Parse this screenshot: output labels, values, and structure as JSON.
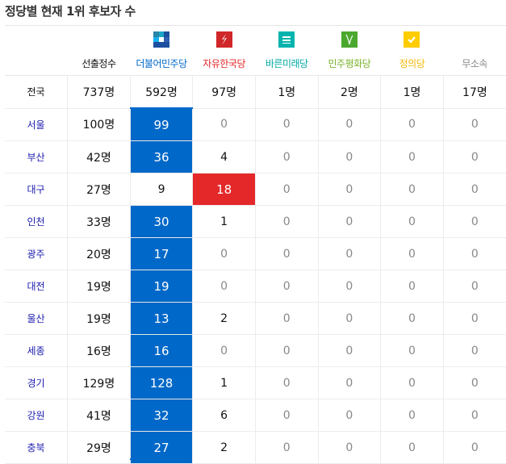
{
  "title": "정당별 현재 1위 후보자 수",
  "columns": [
    {
      "label": "선출정수",
      "color": "#111111",
      "icon": ""
    },
    {
      "label": "더불어민주당",
      "color": "#0068c8",
      "icon": "democratic-party-logo"
    },
    {
      "label": "자유한국당",
      "color": "#e4282a",
      "icon": "liberty-korea-party-logo"
    },
    {
      "label": "바른미래당",
      "color": "#00a9a4",
      "icon": "bareunmirae-party-logo"
    },
    {
      "label": "민주평화당",
      "color": "#7cb32c",
      "icon": "peace-democratic-party-logo"
    },
    {
      "label": "정의당",
      "color": "#f5b800",
      "icon": "justice-party-logo"
    },
    {
      "label": "무소속",
      "color": "#888888",
      "icon": ""
    }
  ],
  "total": {
    "region": "전국",
    "values": [
      "737명",
      "592명",
      "97명",
      "1명",
      "2명",
      "1명",
      "17명"
    ]
  },
  "rows": [
    {
      "region": "서울",
      "seats": "100명",
      "values": [
        "99",
        "0",
        "0",
        "0",
        "0",
        "0"
      ],
      "winner": 0
    },
    {
      "region": "부산",
      "seats": "42명",
      "values": [
        "36",
        "4",
        "0",
        "0",
        "0",
        "0"
      ],
      "winner": 0
    },
    {
      "region": "대구",
      "seats": "27명",
      "values": [
        "9",
        "18",
        "0",
        "0",
        "0",
        "0"
      ],
      "winner": 1
    },
    {
      "region": "인천",
      "seats": "33명",
      "values": [
        "30",
        "1",
        "0",
        "0",
        "0",
        "0"
      ],
      "winner": 0
    },
    {
      "region": "광주",
      "seats": "20명",
      "values": [
        "17",
        "0",
        "0",
        "0",
        "0",
        "0"
      ],
      "winner": 0
    },
    {
      "region": "대전",
      "seats": "19명",
      "values": [
        "19",
        "0",
        "0",
        "0",
        "0",
        "0"
      ],
      "winner": 0
    },
    {
      "region": "울산",
      "seats": "19명",
      "values": [
        "13",
        "2",
        "0",
        "0",
        "0",
        "0"
      ],
      "winner": 0
    },
    {
      "region": "세종",
      "seats": "16명",
      "values": [
        "16",
        "0",
        "0",
        "0",
        "0",
        "0"
      ],
      "winner": 0
    },
    {
      "region": "경기",
      "seats": "129명",
      "values": [
        "128",
        "1",
        "0",
        "0",
        "0",
        "0"
      ],
      "winner": 0
    },
    {
      "region": "강원",
      "seats": "41명",
      "values": [
        "32",
        "6",
        "0",
        "0",
        "0",
        "0"
      ],
      "winner": 0
    },
    {
      "region": "충북",
      "seats": "29명",
      "values": [
        "27",
        "2",
        "0",
        "0",
        "0",
        "0"
      ],
      "winner": 0
    }
  ]
}
